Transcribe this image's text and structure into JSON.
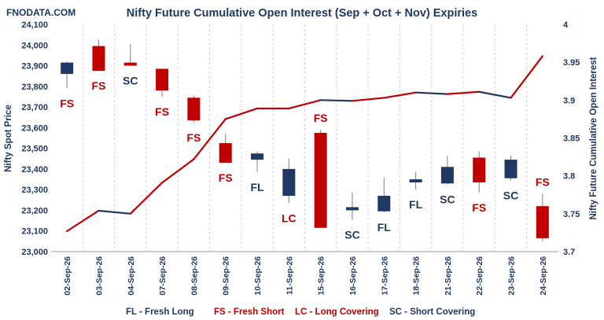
{
  "brand": "FNODATA.COM",
  "chart_data": {
    "type": "candlestick+line",
    "title": "Nifty Future Cumulative Open Interest (Sep + Oct + Nov) Expiries",
    "ylabel": "Nifty Spot Price",
    "y2label": "Nifty Future Cumulative Open Interest",
    "ylim": [
      23000,
      24100
    ],
    "y2lim": [
      3.7,
      4.0
    ],
    "y_ticks": [
      "23,000",
      "23,100",
      "23,200",
      "23,300",
      "23,400",
      "23,500",
      "23,600",
      "23,700",
      "23,800",
      "23,900",
      "24,000",
      "24,100"
    ],
    "y2_ticks": [
      "3.7",
      "3.75",
      "3.8",
      "3.85",
      "3.9",
      "3.95",
      "4"
    ],
    "categories": [
      "02-Sep-26",
      "03-Sep-26",
      "04-Sep-26",
      "07-Sep-26",
      "08-Sep-26",
      "09-Sep-26",
      "10-Sep-26",
      "11-Sep-26",
      "15-Sep-26",
      "16-Sep-26",
      "17-Sep-26",
      "18-Sep-26",
      "21-Sep-26",
      "22-Sep-26",
      "23-Sep-26",
      "24-Sep-26"
    ],
    "candles": [
      {
        "open": 23860,
        "close": 23915,
        "high": 23920,
        "low": 23790
      },
      {
        "open": 23995,
        "close": 23875,
        "high": 24025,
        "low": 23875
      },
      {
        "open": 23915,
        "close": 23900,
        "high": 24005,
        "low": 23900
      },
      {
        "open": 23885,
        "close": 23780,
        "high": 23885,
        "low": 23750
      },
      {
        "open": 23745,
        "close": 23635,
        "high": 23755,
        "low": 23625
      },
      {
        "open": 23525,
        "close": 23430,
        "high": 23570,
        "low": 23430
      },
      {
        "open": 23445,
        "close": 23475,
        "high": 23485,
        "low": 23385
      },
      {
        "open": 23270,
        "close": 23400,
        "high": 23450,
        "low": 23235
      },
      {
        "open": 23575,
        "close": 23115,
        "high": 23590,
        "low": 23115
      },
      {
        "open": 23200,
        "close": 23215,
        "high": 23285,
        "low": 23155
      },
      {
        "open": 23195,
        "close": 23270,
        "high": 23360,
        "low": 23190
      },
      {
        "open": 23335,
        "close": 23350,
        "high": 23385,
        "low": 23300
      },
      {
        "open": 23330,
        "close": 23410,
        "high": 23465,
        "low": 23325
      },
      {
        "open": 23455,
        "close": 23335,
        "high": 23485,
        "low": 23285
      },
      {
        "open": 23355,
        "close": 23445,
        "high": 23465,
        "low": 23345
      },
      {
        "open": 23220,
        "close": 23065,
        "high": 23280,
        "low": 23050
      }
    ],
    "oi": [
      3.727,
      3.754,
      3.75,
      3.791,
      3.822,
      3.875,
      3.889,
      3.889,
      3.9,
      3.899,
      3.903,
      3.91,
      3.908,
      3.911,
      3.903,
      3.958
    ],
    "signals": [
      "FS",
      "FS",
      "SC",
      "FS",
      "FS",
      "FS",
      "FL",
      "LC",
      "FS",
      "SC",
      "FL",
      "FL",
      "SC",
      "FS",
      "SC",
      "FS"
    ],
    "signal_label_position": [
      "below",
      "below",
      "below",
      "below",
      "below",
      "below",
      "below",
      "below",
      "above",
      "below",
      "below",
      "below",
      "below",
      "below",
      "below",
      "above"
    ],
    "up_color": "#1f3864",
    "down_color": "#c00000",
    "legend": [
      {
        "text": "FL - Fresh Long",
        "color": "#1f3864"
      },
      {
        "text": "FS - Fresh Short",
        "color": "#c00000"
      },
      {
        "text": "LC - Long Covering",
        "color": "#c00000"
      },
      {
        "text": "SC - Short Covering",
        "color": "#1f3864"
      }
    ]
  }
}
